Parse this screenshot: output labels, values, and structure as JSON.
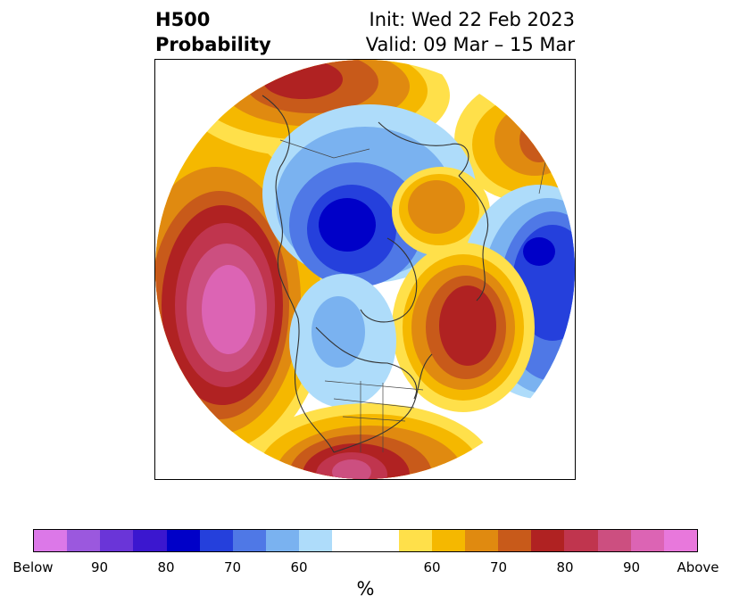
{
  "title": {
    "left_line1": "H500",
    "left_line2": "Probability",
    "right_line1": "Init: Wed 22 Feb 2023",
    "right_line2": "Valid: 09 Mar – 15 Mar"
  },
  "map": {
    "projection": "north-polar-stereographic",
    "features": [
      "coastlines",
      "country-borders",
      "us-state-borders"
    ]
  },
  "colorbar": {
    "label": "%",
    "ticks": [
      "Below",
      "90",
      "80",
      "70",
      "60",
      "60",
      "70",
      "80",
      "90",
      "Above"
    ],
    "colors": [
      "#dc78e8",
      "#9b58de",
      "#6a35d8",
      "#3b17cf",
      "#0000c8",
      "#2540dc",
      "#4f78e6",
      "#7ab2f0",
      "#aedcfa",
      "#ffffff",
      "#ffe04a",
      "#f5b800",
      "#e08a10",
      "#c85a1a",
      "#b02222",
      "#c0354e",
      "#cc4f80",
      "#dc64b4",
      "#e878dc"
    ]
  }
}
